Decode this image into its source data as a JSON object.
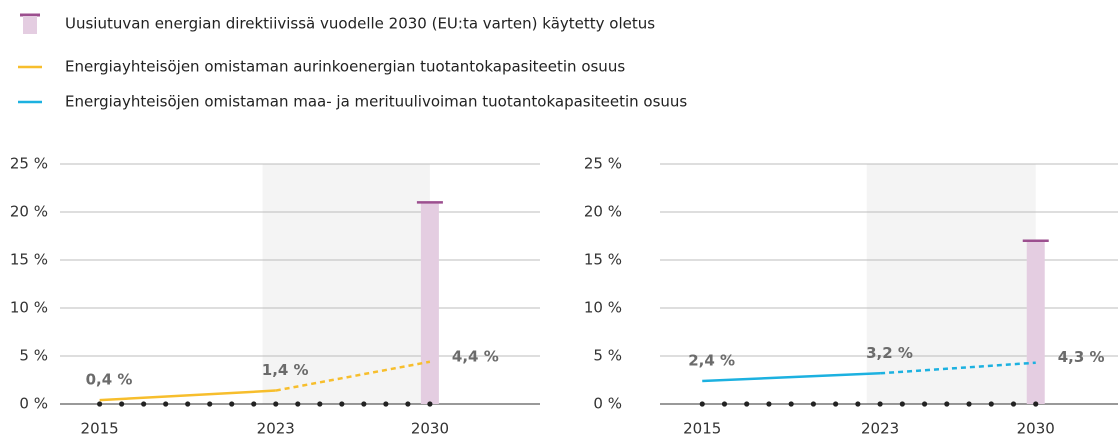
{
  "chart_data": [
    {
      "type": "line",
      "x": [
        2015,
        2016,
        2017,
        2018,
        2019,
        2020,
        2021,
        2022,
        2023,
        2024,
        2025,
        2026,
        2027,
        2028,
        2029,
        2030
      ],
      "xlim": [
        2013.2,
        2035
      ],
      "xticks": [
        2015,
        2023,
        2030
      ],
      "ylim": [
        0,
        25
      ],
      "yticks": [
        {
          "value": 0,
          "label": "0 %"
        },
        {
          "value": 5,
          "label": "5 %"
        },
        {
          "value": 10,
          "label": "10 %"
        },
        {
          "value": 15,
          "label": "15 %"
        },
        {
          "value": 20,
          "label": "20 %"
        },
        {
          "value": 25,
          "label": "25 %"
        }
      ],
      "grid": true,
      "projection_start": 2023,
      "series": [
        {
          "name": "Uusiutuvan energian direktiivissä vuodelle 2030 (EU:ta varten) käytetty oletus",
          "type": "bar",
          "color": "#9c4f8f",
          "fill": "#e4cde1",
          "x": [
            2030
          ],
          "values": [
            21
          ]
        },
        {
          "name": "Energiayhteisöjen omistaman aurinkoenergian tuotantokapasiteetin osuus",
          "type": "line",
          "color": "#f7be2c",
          "x": [
            2015,
            2023,
            2030
          ],
          "values": [
            0.4,
            1.4,
            4.4
          ],
          "value_labels": [
            "0,4 %",
            "1,4 %",
            "4,4 %"
          ]
        }
      ]
    },
    {
      "type": "line",
      "x": [
        2015,
        2016,
        2017,
        2018,
        2019,
        2020,
        2021,
        2022,
        2023,
        2024,
        2025,
        2026,
        2027,
        2028,
        2029,
        2030
      ],
      "xlim": [
        2013.1,
        2033.7
      ],
      "xticks": [
        2015,
        2023,
        2030
      ],
      "ylim": [
        0,
        25
      ],
      "yticks": [
        {
          "value": 0,
          "label": "0 %"
        },
        {
          "value": 5,
          "label": "5 %"
        },
        {
          "value": 10,
          "label": "10 %"
        },
        {
          "value": 15,
          "label": "15 %"
        },
        {
          "value": 20,
          "label": "20 %"
        },
        {
          "value": 25,
          "label": "25 %"
        }
      ],
      "grid": true,
      "projection_start": 2023,
      "series": [
        {
          "type": "bar",
          "color": "#9c4f8f",
          "fill": "#e4cde1",
          "x": [
            2030
          ],
          "values": [
            17
          ]
        },
        {
          "name": "Energiayhteisöjen omistaman maa- ja merituulivoiman tuotantokapasiteetin osuus",
          "type": "line",
          "color": "#1cb1e0",
          "x": [
            2015,
            2023,
            2030
          ],
          "values": [
            2.4,
            3.2,
            4.3
          ],
          "value_labels": [
            "2,4 %",
            "3,2 %",
            "4,3 %"
          ]
        }
      ]
    }
  ]
}
